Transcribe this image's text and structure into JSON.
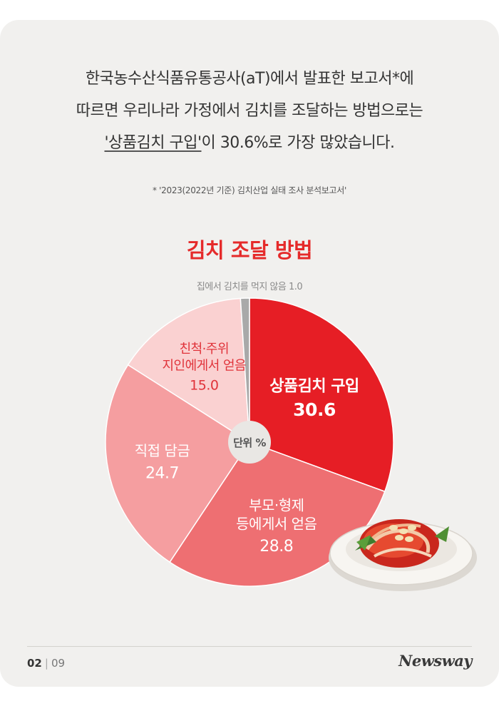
{
  "intro": {
    "line1": "한국농수산식품유통공사(aT)에서 발표한 보고서*에",
    "line2": "따르면 우리나라 가정에서 김치를 조달하는 방법으로는",
    "line3_highlight": "'상품김치 구입'",
    "line3_rest": "이 30.6%로 가장 많았습니다."
  },
  "footnote": "* '2023(2022년 기준) 김치산업 실태 조사 분석보고서'",
  "chart_data": {
    "type": "pie",
    "title": "김치 조달 방법",
    "unit_label": "단위 %",
    "slices": [
      {
        "label": "상품김치 구입",
        "lines": [
          "상품김치 구입"
        ],
        "value": 30.6,
        "value_text": "30.6",
        "color": "#e61e25"
      },
      {
        "label": "부모·형제 등에게서 얻음",
        "lines": [
          "부모·형제",
          "등에게서 얻음"
        ],
        "value": 28.8,
        "value_text": "28.8",
        "color": "#ee6f72"
      },
      {
        "label": "직접 담금",
        "lines": [
          "직접 담금"
        ],
        "value": 24.7,
        "value_text": "24.7",
        "color": "#f59ea0"
      },
      {
        "label": "친척·주위 지인에게서 얻음",
        "lines": [
          "친척·주위",
          "지인에게서 얻음"
        ],
        "value": 15.0,
        "value_text": "15.0",
        "color": "#fad1d1"
      },
      {
        "label": "집에서 김치를 먹지 않음",
        "lines": [
          "집에서 김치를 먹지 않음"
        ],
        "value": 1.0,
        "value_text": "1.0",
        "color": "#a9a9a9"
      }
    ]
  },
  "footer": {
    "page": "02",
    "total": "09",
    "brand": "Newsway"
  },
  "colors": {
    "accent": "#e52a2a",
    "background": "#f1f0ee"
  }
}
